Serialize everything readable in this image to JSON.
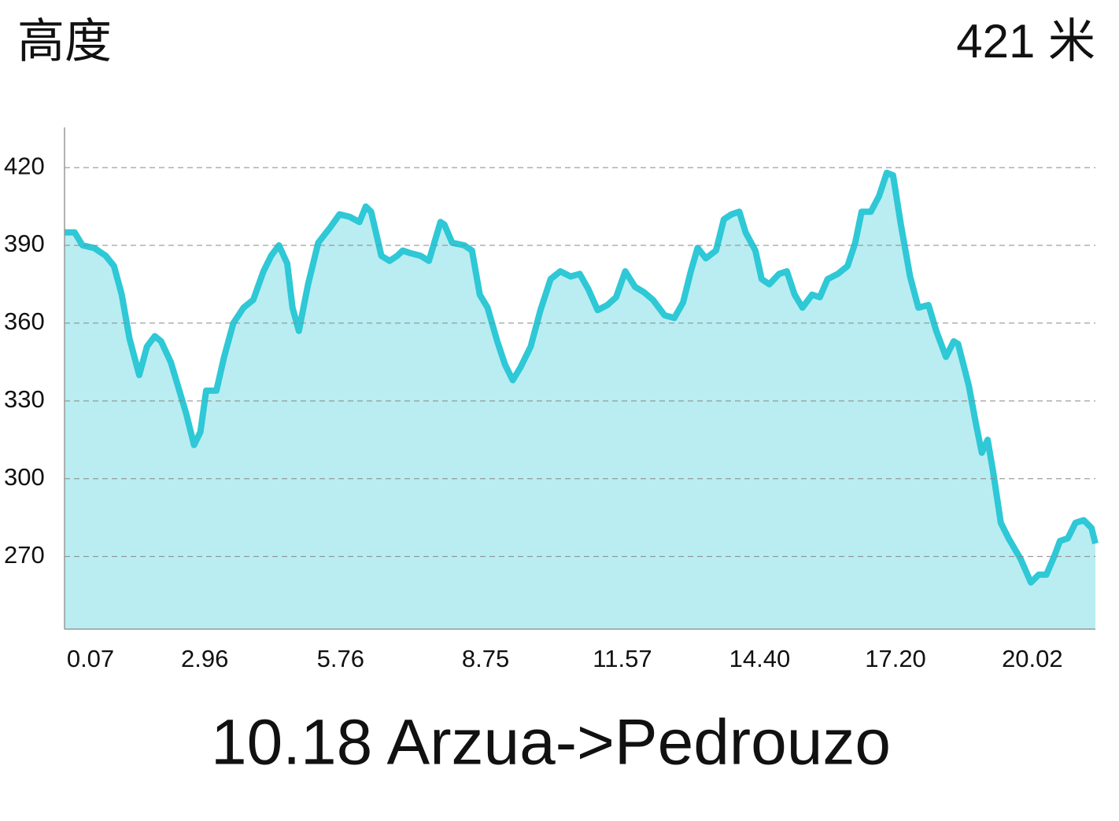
{
  "header": {
    "label": "高度",
    "current": "421 米"
  },
  "chart_data": {
    "type": "area",
    "title": "10.18 Arzua->Pedrouzo",
    "x": [
      0.07,
      0.28,
      0.44,
      0.68,
      0.92,
      1.09,
      1.25,
      1.41,
      1.61,
      1.77,
      1.93,
      2.06,
      2.26,
      2.42,
      2.58,
      2.74,
      2.87,
      2.99,
      3.2,
      3.36,
      3.55,
      3.76,
      3.96,
      4.17,
      4.33,
      4.49,
      4.66,
      4.77,
      4.9,
      5.09,
      5.3,
      5.55,
      5.74,
      5.95,
      6.15,
      6.28,
      6.39,
      6.6,
      6.77,
      6.93,
      7.04,
      7.2,
      7.41,
      7.58,
      7.82,
      7.9,
      8.06,
      8.31,
      8.47,
      8.63,
      8.79,
      8.99,
      9.15,
      9.31,
      9.47,
      9.68,
      9.88,
      10.09,
      10.29,
      10.5,
      10.69,
      10.87,
      11.06,
      11.26,
      11.44,
      11.63,
      11.83,
      12.01,
      12.2,
      12.44,
      12.64,
      12.82,
      12.98,
      13.12,
      13.29,
      13.5,
      13.66,
      13.82,
      13.98,
      14.11,
      14.31,
      14.44,
      14.6,
      14.8,
      14.96,
      15.12,
      15.28,
      15.48,
      15.64,
      15.8,
      16.01,
      16.21,
      16.37,
      16.5,
      16.69,
      16.86,
      17.02,
      17.15,
      17.31,
      17.5,
      17.67,
      17.88,
      18.04,
      18.24,
      18.4,
      18.49,
      18.71,
      18.86,
      18.98,
      19.1,
      19.21,
      19.37,
      19.53,
      19.78,
      19.99,
      20.15,
      20.31,
      20.47,
      20.59,
      20.75,
      20.91,
      21.08,
      21.24,
      21.32
    ],
    "series": [
      {
        "name": "高度",
        "color": "#2ec8d6",
        "fill": "#b9edf1",
        "values": [
          395,
          395,
          390,
          389,
          386,
          382,
          371,
          354,
          340,
          351,
          355,
          353,
          345,
          335,
          325,
          313,
          318,
          334,
          334,
          347,
          360,
          366,
          369,
          380,
          386,
          390,
          383,
          366,
          357,
          375,
          391,
          397,
          402,
          401,
          399,
          405,
          403,
          386,
          384,
          386,
          388,
          387,
          386,
          384,
          399,
          398,
          391,
          390,
          388,
          371,
          366,
          353,
          344,
          338,
          343,
          351,
          365,
          377,
          380,
          378,
          379,
          373,
          365,
          367,
          370,
          380,
          374,
          372,
          369,
          363,
          362,
          368,
          380,
          389,
          385,
          388,
          400,
          402,
          403,
          395,
          388,
          377,
          375,
          379,
          380,
          371,
          366,
          371,
          370,
          377,
          379,
          382,
          391,
          403,
          403,
          409,
          418,
          417,
          398,
          378,
          366,
          367,
          357,
          347,
          353,
          352,
          336,
          321,
          310,
          315,
          303,
          283,
          277,
          269,
          260,
          263,
          263,
          270,
          276,
          277,
          283,
          284,
          281,
          275
        ]
      }
    ],
    "xlim": [
      0.07,
      21.32
    ],
    "ylim": [
      242,
      435.5
    ],
    "xticks": [
      0.07,
      {
        "value": 2.96,
        "label": "2.96"
      },
      {
        "value": 5.76,
        "label": "5.76"
      },
      {
        "value": 8.75,
        "label": "8.75"
      },
      {
        "value": 11.57,
        "label": "11.57"
      },
      {
        "value": 14.4,
        "label": "14.40"
      },
      {
        "value": 17.2,
        "label": "17.20"
      },
      20.02
    ],
    "yticks": [
      270,
      300,
      330,
      360,
      390,
      420
    ],
    "grid": true
  }
}
